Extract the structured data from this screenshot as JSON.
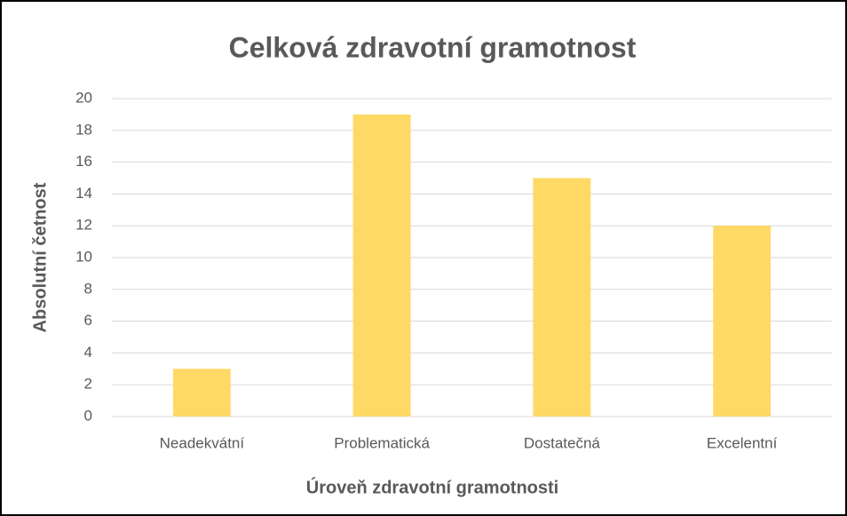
{
  "chart_data": {
    "type": "bar",
    "title": "Celková zdravotní gramotnost",
    "x_label": "Úroveň zdravotní gramotnosti",
    "y_label": "Absolutní četnost",
    "categories": [
      "Neadekvátní",
      "Problematická",
      "Dostatečná",
      "Excelentní"
    ],
    "values": [
      3,
      19,
      15,
      12
    ],
    "color": "#ffd966",
    "ylim": [
      0,
      20
    ],
    "yticks": [
      0,
      2,
      4,
      6,
      8,
      10,
      12,
      14,
      16,
      18,
      20
    ],
    "grid": true
  }
}
